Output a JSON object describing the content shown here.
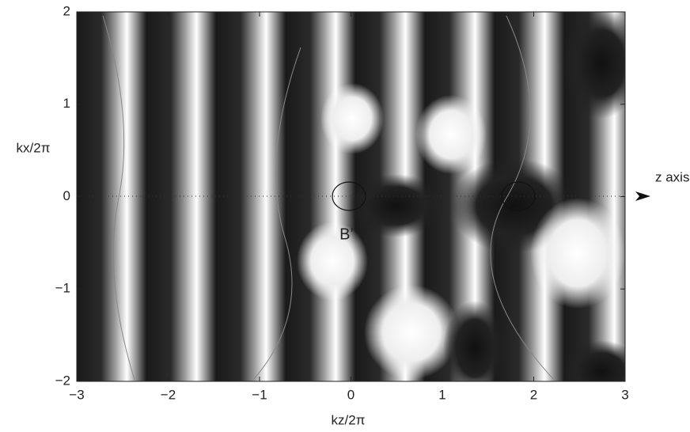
{
  "chart_data": {
    "type": "phase-map",
    "xlabel": "kz/2π",
    "ylabel": "kx/2π",
    "xlim": [
      -3,
      3
    ],
    "ylim": [
      -2,
      2
    ],
    "xticks": [
      {
        "value": -3,
        "label": "−3"
      },
      {
        "value": -2,
        "label": "−2"
      },
      {
        "value": -1,
        "label": "−1"
      },
      0,
      1,
      2,
      3
    ],
    "yticks": [
      {
        "value": -2,
        "label": "−2"
      },
      {
        "value": -1,
        "label": "−1"
      },
      0,
      1,
      2
    ],
    "annotations": [
      "B’",
      "z axis"
    ]
  }
}
